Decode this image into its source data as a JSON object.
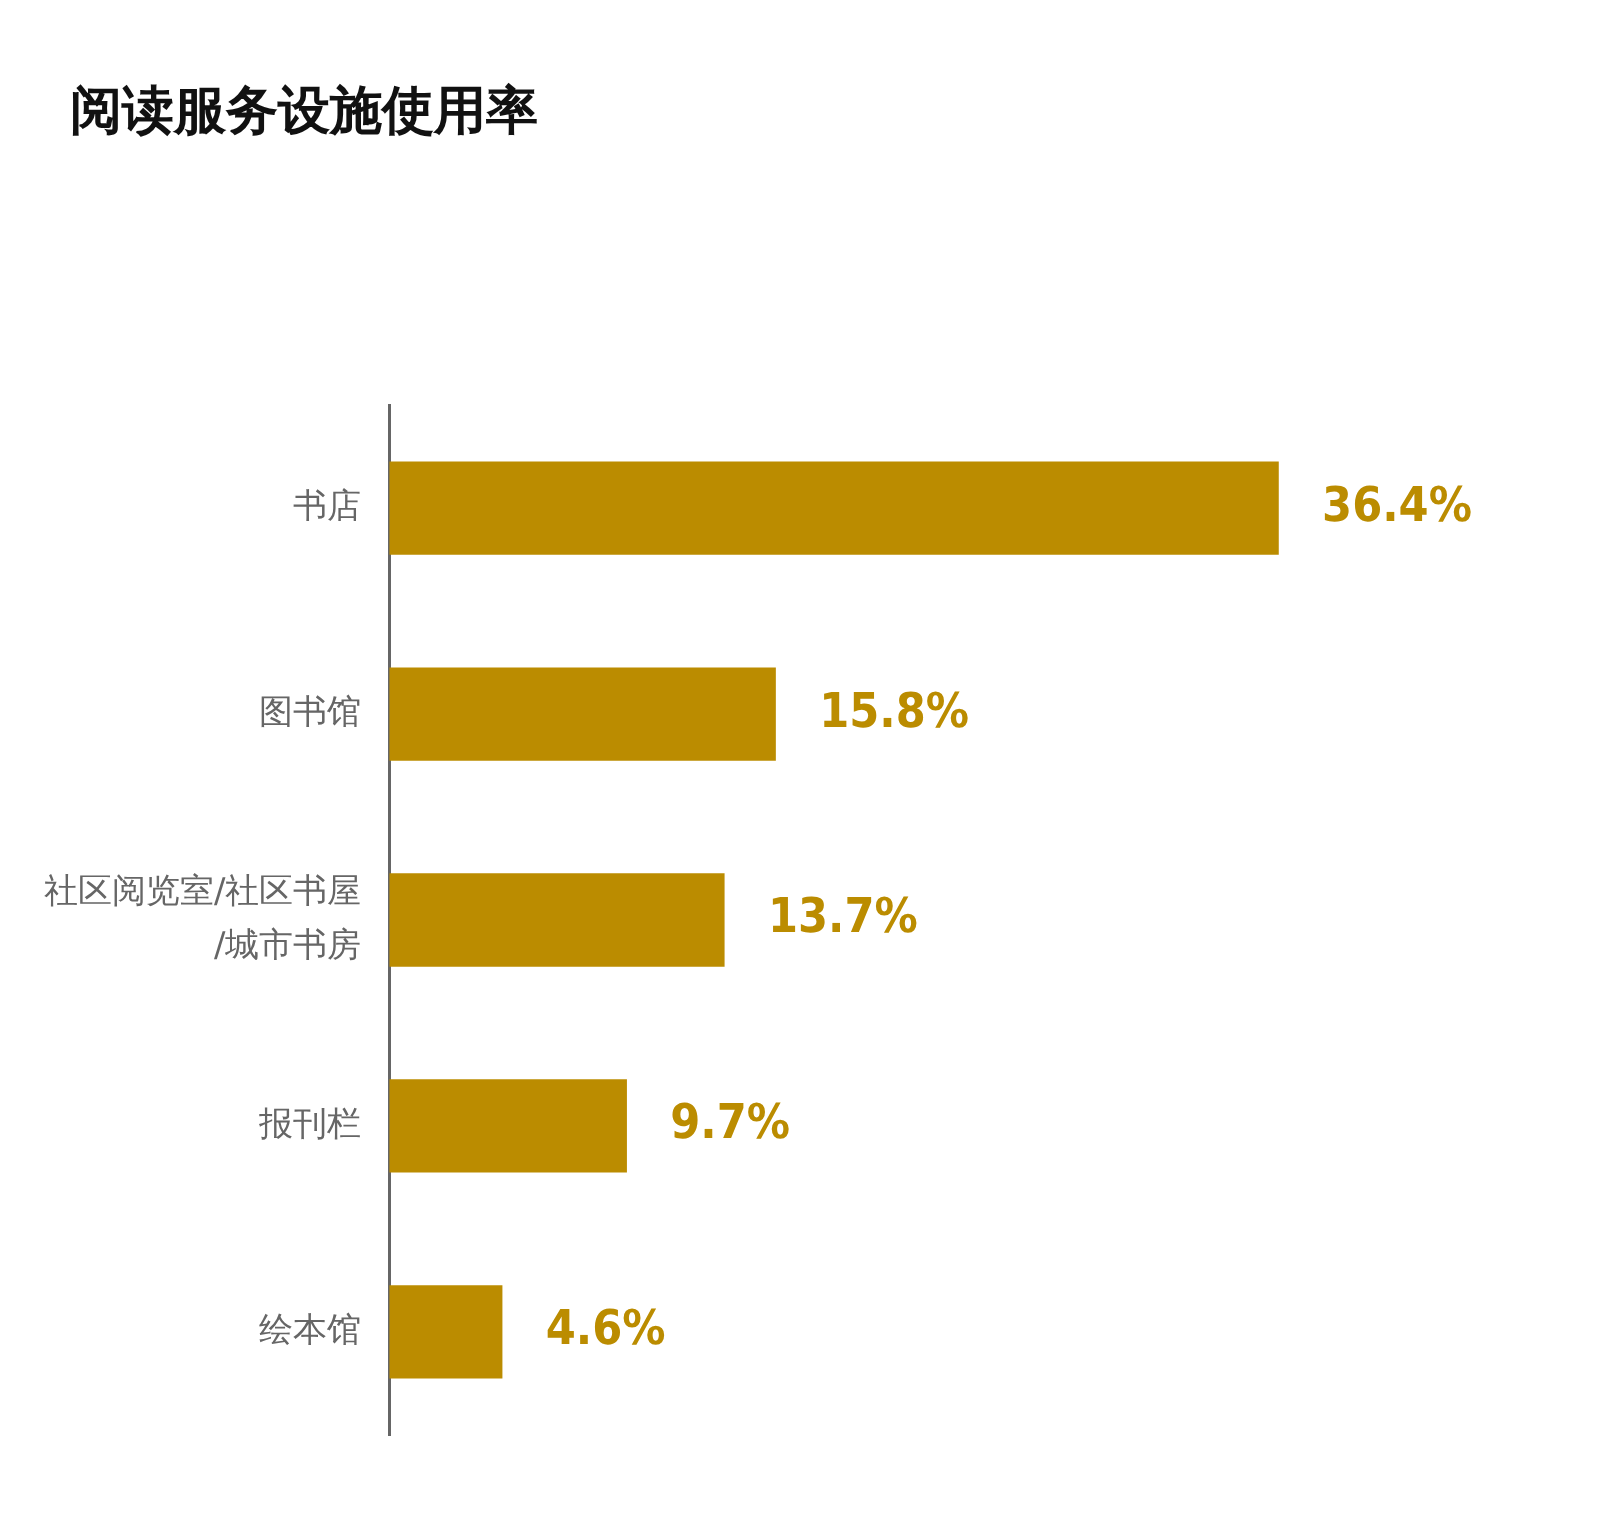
{
  "chart_data": {
    "type": "bar",
    "orientation": "horizontal",
    "title": "阅读服务设施使用率",
    "categories": [
      "书店",
      "图书馆",
      "社区阅览室/社区书屋/城市书房",
      "报刊栏",
      "绘本馆"
    ],
    "values": [
      36.4,
      15.8,
      13.7,
      9.7,
      4.6
    ],
    "value_labels": [
      "36.4%",
      "15.8%",
      "13.7%",
      "9.7%",
      "4.6%"
    ],
    "color": "#bb8c00",
    "grid": false,
    "legend": false
  }
}
